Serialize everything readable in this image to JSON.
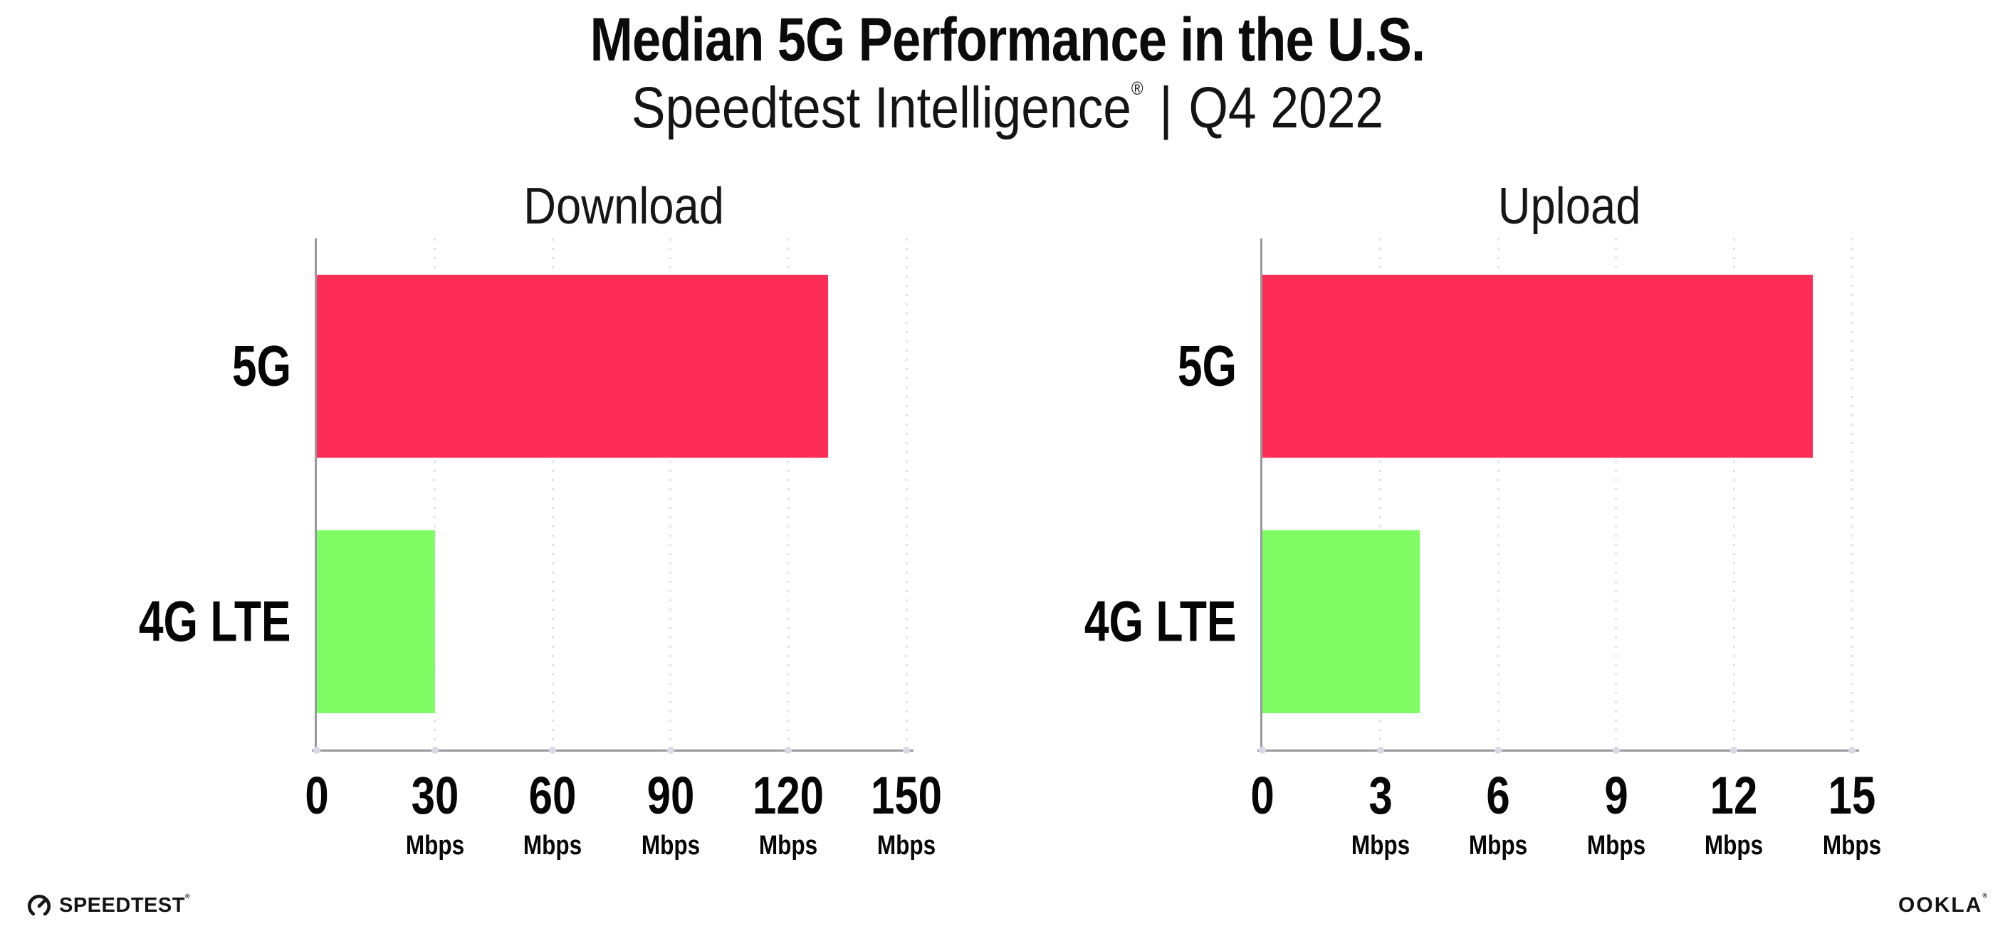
{
  "header": {
    "title": "Median 5G Performance in the U.S.",
    "subtitle": {
      "brand": "Speedtest Intelligence",
      "registered_mark": "®",
      "separator": "|",
      "period": "Q4 2022"
    }
  },
  "chart_data": [
    {
      "type": "bar",
      "orientation": "horizontal",
      "title": "Download",
      "categories": [
        "5G",
        "4G LTE"
      ],
      "values": [
        130,
        30
      ],
      "unit": "Mbps",
      "xlim": [
        0,
        150
      ],
      "xticks": [
        0,
        30,
        60,
        90,
        120,
        150
      ],
      "bar_colors": [
        "#FE2D58",
        "#80FC64"
      ],
      "grid": "dotted vertical gridlines at each tick",
      "legend": "none"
    },
    {
      "type": "bar",
      "orientation": "horizontal",
      "title": "Upload",
      "categories": [
        "5G",
        "4G LTE"
      ],
      "values": [
        14,
        4
      ],
      "unit": "Mbps",
      "xlim": [
        0,
        15
      ],
      "xticks": [
        0,
        3,
        6,
        9,
        12,
        15
      ],
      "bar_colors": [
        "#FE2D58",
        "#80FC64"
      ],
      "grid": "dotted vertical gridlines at each tick",
      "legend": "none"
    }
  ],
  "style": {
    "bar_color_5g": "#FE2D58",
    "bar_color_4g_lte": "#80FC64",
    "axis_color": "#98989e",
    "gridline_dot_color": "#e1e1ec",
    "text_color": "#0b0b0b"
  },
  "footer": {
    "speedtest_icon": "speedometer-gauge-icon",
    "speedtest_wordmark": "SPEEDTEST",
    "speedtest_mark": "®",
    "ookla_wordmark": "OOKLA",
    "ookla_mark": "®"
  }
}
